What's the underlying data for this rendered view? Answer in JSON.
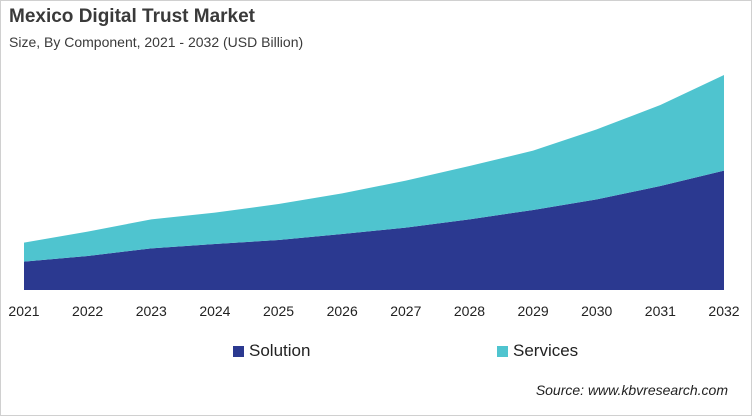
{
  "title": "Mexico Digital Trust Market",
  "subtitle": "Size, By Component, 2021 - 2032 (USD Billion)",
  "source": "Source: www.kbvresearch.com",
  "chart_data": {
    "type": "area",
    "stacked": true,
    "title": "Mexico Digital Trust Market",
    "subtitle": "Size, By Component, 2021 - 2032 (USD Billion)",
    "categories": [
      "2021",
      "2022",
      "2023",
      "2024",
      "2025",
      "2026",
      "2027",
      "2028",
      "2029",
      "2030",
      "2031",
      "2032"
    ],
    "series": [
      {
        "name": "Solution",
        "color": "#2b3990",
        "values": [
          0.85,
          1.02,
          1.25,
          1.38,
          1.5,
          1.68,
          1.87,
          2.12,
          2.4,
          2.72,
          3.12,
          3.58
        ]
      },
      {
        "name": "Services",
        "color": "#4fc4cf",
        "values": [
          0.57,
          0.73,
          0.87,
          0.94,
          1.08,
          1.22,
          1.41,
          1.6,
          1.78,
          2.1,
          2.43,
          2.87
        ]
      }
    ],
    "ylim": [
      0,
      6.6
    ],
    "y_axis_shown": false,
    "grid": false,
    "legend": "bottom"
  }
}
